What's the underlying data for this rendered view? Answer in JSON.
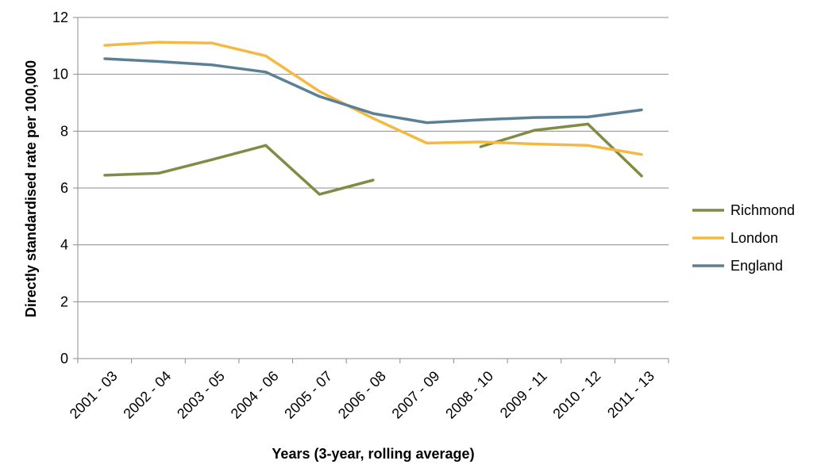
{
  "chart_data": {
    "type": "line",
    "title": "",
    "xlabel": "Years (3-year, rolling average)",
    "ylabel": "Directly standardised rate per 100,000",
    "ylim": [
      0,
      12
    ],
    "yticks": [
      0,
      2,
      4,
      6,
      8,
      10,
      12
    ],
    "grid": "horizontal",
    "legend_position": "right",
    "categories": [
      "2001 - 03",
      "2002 - 04",
      "2003 - 05",
      "2004 - 06",
      "2005 - 07",
      "2006 - 08",
      "2007 - 09",
      "2008 - 10",
      "2009 - 11",
      "2010 - 12",
      "2011 - 13"
    ],
    "series": [
      {
        "name": "Richmond",
        "color": "#7f8c45",
        "values": [
          6.45,
          6.52,
          7.0,
          7.5,
          5.78,
          6.28,
          null,
          7.45,
          8.03,
          8.25,
          6.42
        ]
      },
      {
        "name": "London",
        "color": "#f5b942",
        "values": [
          11.02,
          11.13,
          11.1,
          10.65,
          9.4,
          8.45,
          7.58,
          7.62,
          7.55,
          7.5,
          7.18
        ]
      },
      {
        "name": "England",
        "color": "#5b8095",
        "values": [
          10.55,
          10.45,
          10.33,
          10.08,
          9.22,
          8.62,
          8.3,
          8.4,
          8.48,
          8.5,
          8.75
        ]
      }
    ]
  }
}
